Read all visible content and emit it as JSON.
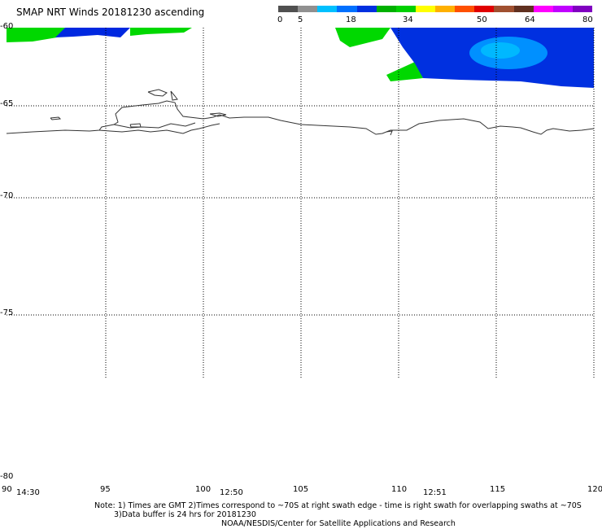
{
  "title": "SMAP NRT Winds 20181230 ascending",
  "colorbar": {
    "ticks": [
      "0",
      "5",
      "18",
      "34",
      "50",
      "64",
      "80"
    ],
    "segments": [
      "#505050",
      "#909090",
      "#00c0ff",
      "#0070ff",
      "#0030e0",
      "#00b000",
      "#00d000",
      "#ffff00",
      "#ffb000",
      "#ff5000",
      "#e00000",
      "#a05030",
      "#603020",
      "#ff00ff",
      "#c000ff",
      "#8000c0"
    ]
  },
  "lat_labels": [
    "-60",
    "-65",
    "-70",
    "-75",
    "-80"
  ],
  "lon_labels": [
    "90",
    "95",
    "100",
    "105",
    "110",
    "115",
    "120"
  ],
  "times": [
    "14:30",
    "12:50",
    "12:51"
  ],
  "note": {
    "line1": "Note: 1) Times are GMT 2)Times correspond to ~70S at right swath edge - time is right swath for overlapping swaths at ~70S",
    "line2": "3)Data buffer is 24 hrs for 20181230",
    "credit": "NOAA/NESDIS/Center for Satellite Applications and Research"
  }
}
